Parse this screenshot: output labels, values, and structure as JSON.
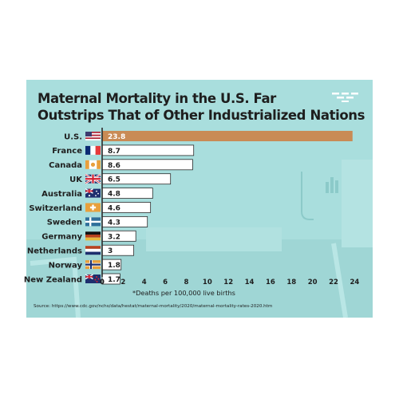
{
  "chart_data": {
    "type": "bar",
    "orientation": "horizontal",
    "title_lines": [
      "Maternal Mortality in the U.S. Far",
      "Outstrips That of Other Industrialized Nations"
    ],
    "categories": [
      "U.S.",
      "France",
      "Canada",
      "UK",
      "Australia",
      "Switzerland",
      "Sweden",
      "Germany",
      "Netherlands",
      "Norway",
      "New Zealand"
    ],
    "flags": [
      "us-flag-icon",
      "france-flag-icon",
      "canada-flag-icon",
      "uk-flag-icon",
      "australia-flag-icon",
      "switzerland-flag-icon",
      "sweden-flag-icon",
      "germany-flag-icon",
      "netherlands-flag-icon",
      "norway-flag-icon",
      "new-zealand-flag-icon"
    ],
    "values": [
      23.8,
      8.7,
      8.6,
      6.5,
      4.8,
      4.6,
      4.3,
      3.2,
      3,
      1.8,
      1.7
    ],
    "value_labels": [
      "23.8",
      "8.7",
      "8.6",
      "6.5",
      "4.8",
      "4.6",
      "4.3",
      "3.2",
      "3",
      "1.8",
      "1.7"
    ],
    "xticks": [
      "0",
      "2",
      "4",
      "6",
      "8",
      "10",
      "12",
      "14",
      "16",
      "18",
      "20",
      "22",
      "24"
    ],
    "xlim": [
      0,
      24
    ],
    "footnote": "*Deaths per 100,000 live births",
    "source": "Source: https://www.cdc.gov/nchs/data/hestat/maternal-mortality/2020/maternal-mortality-rates-2020.htm",
    "colors": {
      "highlight_bar": "#c98b55",
      "bar": "#ffffff",
      "bar_border": "#2a2a2a",
      "background": "#a9dedd",
      "text": "#1e1e1e"
    }
  }
}
